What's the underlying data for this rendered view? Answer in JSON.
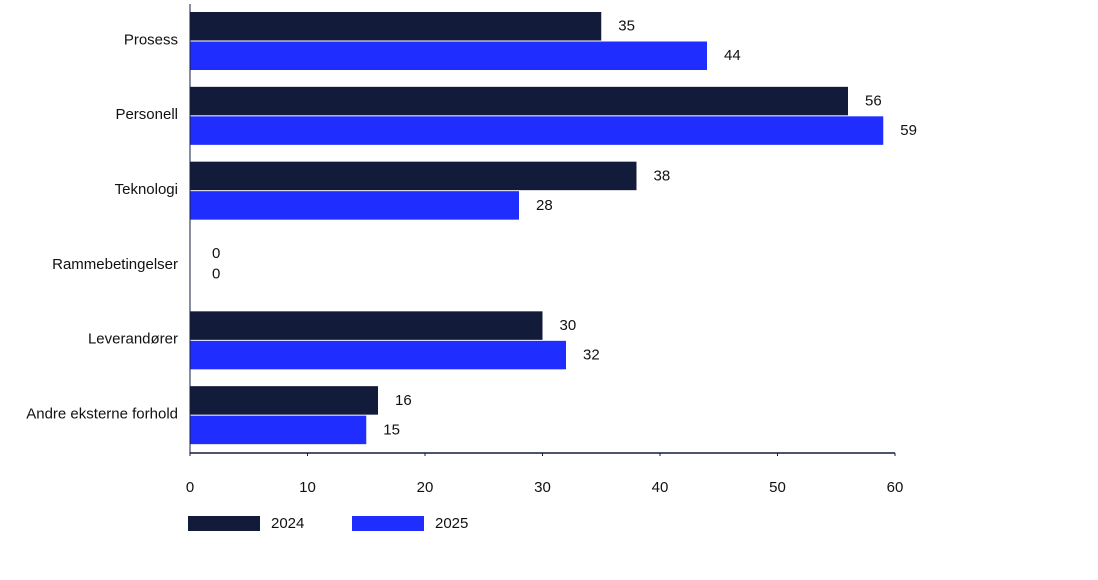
{
  "chart_data": {
    "type": "hbar",
    "categories": [
      "Prosess",
      "Personell",
      "Teknologi",
      "Rammebetingelser",
      "Leverandører",
      "Andre eksterne forhold"
    ],
    "series": [
      {
        "name": "2024",
        "color": "#131b3b",
        "values": [
          35,
          56,
          38,
          0,
          30,
          16
        ]
      },
      {
        "name": "2025",
        "color": "#1f2eff",
        "values": [
          44,
          59,
          28,
          0,
          32,
          15
        ]
      }
    ],
    "xlim": [
      0,
      60
    ],
    "xticks": [
      0,
      10,
      20,
      30,
      40,
      50,
      60
    ],
    "grid": false
  }
}
